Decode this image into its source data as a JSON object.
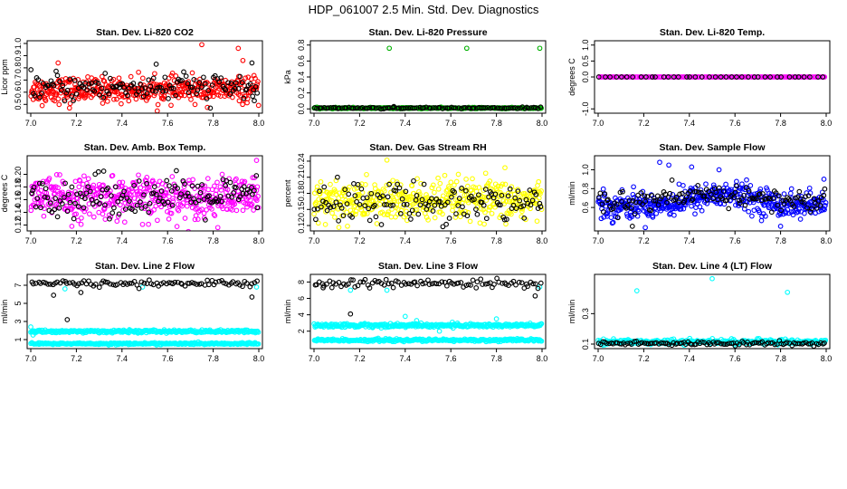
{
  "page_title": "HDP_061007  2.5 Min. Std. Dev. Diagnostics",
  "chart_data": [
    {
      "type": "scatter",
      "title": "Stan. Dev. Li-820 CO2",
      "xlabel": "",
      "ylabel": "Licor ppm",
      "xlim": [
        7.0,
        8.0
      ],
      "ylim": [
        0.45,
        1.0
      ],
      "xticks": [
        "7.0",
        "7.2",
        "7.4",
        "7.6",
        "7.8",
        "8.0"
      ],
      "yticks": [
        "0.5",
        "0.6",
        "0.7",
        "0.8",
        "0.9",
        "1.0"
      ],
      "series": [
        {
          "name": "dense",
          "color": "#ff0000",
          "n": 420,
          "base": 0.62,
          "spread": 0.05,
          "trend": 0.0,
          "outliers": [
            [
              7.75,
              0.99
            ],
            [
              7.91,
              0.96
            ],
            [
              7.93,
              0.86
            ],
            [
              7.12,
              0.84
            ],
            [
              7.17,
              0.47
            ],
            [
              7.05,
              0.49
            ]
          ]
        },
        {
          "name": "sparse",
          "color": "#000000",
          "n": 130,
          "base": 0.64,
          "spread": 0.06,
          "trend": 0.0,
          "outliers": [
            [
              7.55,
              0.83
            ],
            [
              7.97,
              0.84
            ],
            [
              7.98,
              0.53
            ]
          ]
        }
      ]
    },
    {
      "type": "scatter",
      "title": "Stan. Dev. Li-820 Pressure",
      "xlabel": "",
      "ylabel": "kPa",
      "xlim": [
        7.0,
        8.0
      ],
      "ylim": [
        -0.02,
        0.82
      ],
      "xticks": [
        "7.0",
        "7.2",
        "7.4",
        "7.6",
        "7.8",
        "8.0"
      ],
      "yticks": [
        "0.0",
        "0.2",
        "0.4",
        "0.6",
        "0.8"
      ],
      "series": [
        {
          "name": "dense",
          "color": "#00b000",
          "n": 300,
          "base": 0.01,
          "spread": 0.004,
          "trend": 0.0,
          "outliers": [
            [
              7.33,
              0.76
            ],
            [
              7.67,
              0.76
            ],
            [
              7.99,
              0.76
            ]
          ]
        },
        {
          "name": "sparse",
          "color": "#000000",
          "n": 100,
          "base": 0.012,
          "spread": 0.005,
          "trend": 0.0,
          "outliers": [
            [
              7.35,
              0.03
            ]
          ]
        }
      ]
    },
    {
      "type": "scatter",
      "title": "Stan. Dev. Li-820 Temp.",
      "xlabel": "",
      "ylabel": "degrees C",
      "xlim": [
        7.0,
        8.0
      ],
      "ylim": [
        -1.05,
        1.05
      ],
      "xticks": [
        "7.0",
        "7.2",
        "7.4",
        "7.6",
        "7.8",
        "8.0"
      ],
      "yticks": [
        "-1.0",
        "0.0",
        "0.5",
        "1.0"
      ],
      "series": [
        {
          "name": "dense",
          "color": "#ff00ff",
          "n": 140,
          "base": 0.0,
          "spread": 0.0,
          "trend": 0.0,
          "outliers": []
        },
        {
          "name": "sparse",
          "color": "#000000",
          "n": 40,
          "base": 0.0,
          "spread": 0.0,
          "trend": 0.0,
          "outliers": []
        }
      ]
    },
    {
      "type": "scatter",
      "title": "Stan. Dev. Amb. Box Temp.",
      "xlabel": "",
      "ylabel": "degrees C",
      "xlim": [
        7.0,
        8.0
      ],
      "ylim": [
        0.115,
        0.225
      ],
      "xticks": [
        "7.0",
        "7.2",
        "7.4",
        "7.6",
        "7.8",
        "8.0"
      ],
      "yticks": [
        "0.12",
        "0.14",
        "0.16",
        "0.18",
        "0.20"
      ],
      "series": [
        {
          "name": "dense",
          "color": "#ff00ff",
          "n": 460,
          "base": 0.163,
          "spread": 0.016,
          "trend": 0.0,
          "outliers": [
            [
              7.99,
              0.222
            ],
            [
              7.18,
              0.118
            ],
            [
              7.49,
              0.121
            ]
          ]
        },
        {
          "name": "sparse",
          "color": "#000000",
          "n": 140,
          "base": 0.165,
          "spread": 0.015,
          "trend": 0.0,
          "outliers": [
            [
              7.32,
              0.205
            ]
          ]
        }
      ]
    },
    {
      "type": "scatter",
      "title": "Stan. Dev. Gas Stream RH",
      "xlabel": "",
      "ylabel": "percent",
      "xlim": [
        7.0,
        8.0
      ],
      "ylim": [
        0.115,
        0.245
      ],
      "xticks": [
        "7.0",
        "7.2",
        "7.4",
        "7.6",
        "7.8",
        "8.0"
      ],
      "yticks": [
        "0.12",
        "0.15",
        "0.18",
        "0.21",
        "0.24"
      ],
      "series": [
        {
          "name": "dense",
          "color": "#ffff00",
          "n": 440,
          "base": 0.165,
          "spread": 0.02,
          "trend": 0.0,
          "outliers": [
            [
              7.32,
              0.242
            ],
            [
              7.05,
              0.122
            ]
          ]
        },
        {
          "name": "sparse",
          "color": "#000000",
          "n": 140,
          "base": 0.165,
          "spread": 0.018,
          "trend": 0.0,
          "outliers": []
        }
      ]
    },
    {
      "type": "scatter",
      "title": "Stan. Dev. Sample Flow",
      "xlabel": "",
      "ylabel": "ml/min",
      "xlim": [
        7.0,
        8.0
      ],
      "ylim": [
        0.38,
        1.12
      ],
      "xticks": [
        "7.0",
        "7.2",
        "7.4",
        "7.6",
        "7.8",
        "8.0"
      ],
      "yticks": [
        "0.6",
        "0.8",
        "1.0"
      ],
      "series": [
        {
          "name": "dense",
          "color": "#0000ff",
          "n": 460,
          "base": 0.62,
          "spread": 0.07,
          "trend": 0.0,
          "bump": {
            "center": 7.55,
            "width": 0.18,
            "height": 0.12
          },
          "outliers": [
            [
              7.27,
              1.08
            ],
            [
              7.31,
              1.05
            ],
            [
              7.41,
              1.03
            ],
            [
              7.53,
              1.0
            ],
            [
              7.8,
              0.4
            ],
            [
              7.99,
              0.9
            ]
          ]
        },
        {
          "name": "sparse",
          "color": "#000000",
          "n": 140,
          "base": 0.66,
          "spread": 0.06,
          "trend": 0.0,
          "bump": {
            "center": 7.55,
            "width": 0.18,
            "height": 0.08
          },
          "outliers": [
            [
              7.15,
              0.4
            ]
          ]
        }
      ]
    },
    {
      "type": "scatter",
      "title": "Stan. Dev. Line 2 Flow",
      "xlabel": "",
      "ylabel": "ml/min",
      "xlim": [
        7.0,
        8.0
      ],
      "ylim": [
        0.3,
        7.9
      ],
      "xticks": [
        "7.0",
        "7.2",
        "7.4",
        "7.6",
        "7.8",
        "8.0"
      ],
      "yticks": [
        "1",
        "3",
        "5",
        "7"
      ],
      "series": [
        {
          "name": "cyan-upper",
          "color": "#00ffff",
          "n": 320,
          "base": 1.9,
          "spread": 0.08,
          "trend": 0.0,
          "outliers": [
            [
              7.0,
              2.4
            ],
            [
              7.01,
              1.5
            ],
            [
              7.15,
              6.6
            ],
            [
              7.49,
              6.8
            ],
            [
              7.99,
              6.8
            ]
          ]
        },
        {
          "name": "cyan-lower",
          "color": "#00ffff",
          "n": 300,
          "base": 0.55,
          "spread": 0.05,
          "trend": 0.0,
          "outliers": []
        },
        {
          "name": "black",
          "color": "#000000",
          "n": 95,
          "base": 7.2,
          "spread": 0.18,
          "trend": 0.0,
          "outliers": [
            [
              7.16,
              3.2
            ],
            [
              7.1,
              5.9
            ],
            [
              7.22,
              6.2
            ],
            [
              7.97,
              5.7
            ]
          ]
        }
      ]
    },
    {
      "type": "scatter",
      "title": "Stan. Dev. Line 3 Flow",
      "xlabel": "",
      "ylabel": "ml/min",
      "xlim": [
        7.0,
        8.0
      ],
      "ylim": [
        0.2,
        8.6
      ],
      "xticks": [
        "7.0",
        "7.2",
        "7.4",
        "7.6",
        "7.8",
        "8.0"
      ],
      "yticks": [
        "2",
        "4",
        "6",
        "8"
      ],
      "series": [
        {
          "name": "cyan-upper",
          "color": "#00ffff",
          "n": 320,
          "base": 2.7,
          "spread": 0.12,
          "trend": 0.0,
          "outliers": [
            [
              7.4,
              3.8
            ],
            [
              7.45,
              3.3
            ],
            [
              7.8,
              3.5
            ],
            [
              7.55,
              2.0
            ],
            [
              7.16,
              7.0
            ],
            [
              7.32,
              7.0
            ],
            [
              7.99,
              7.4
            ]
          ]
        },
        {
          "name": "cyan-lower",
          "color": "#00ffff",
          "n": 300,
          "base": 0.9,
          "spread": 0.08,
          "trend": 0.0,
          "outliers": []
        },
        {
          "name": "black",
          "color": "#000000",
          "n": 95,
          "base": 7.8,
          "spread": 0.25,
          "trend": 0.0,
          "outliers": [
            [
              7.16,
              4.1
            ],
            [
              7.04,
              7.3
            ],
            [
              7.97,
              6.3
            ]
          ]
        }
      ]
    },
    {
      "type": "scatter",
      "title": "Stan. Dev. Line 4 (LT) Flow",
      "xlabel": "",
      "ylabel": "ml/min",
      "xlim": [
        7.0,
        8.0
      ],
      "ylim": [
        0.088,
        0.54
      ],
      "xticks": [
        "7.0",
        "7.2",
        "7.4",
        "7.6",
        "7.8",
        "8.0"
      ],
      "yticks": [
        "0.1",
        "0.3"
      ],
      "series": [
        {
          "name": "cyan",
          "color": "#00ffff",
          "n": 300,
          "base": 0.115,
          "spread": 0.008,
          "trend": 0.0,
          "outliers": [
            [
              7.17,
              0.45
            ],
            [
              7.5,
              0.53
            ],
            [
              7.83,
              0.44
            ]
          ]
        },
        {
          "name": "black",
          "color": "#000000",
          "n": 110,
          "base": 0.105,
          "spread": 0.007,
          "trend": 0.0,
          "outliers": []
        }
      ]
    }
  ]
}
